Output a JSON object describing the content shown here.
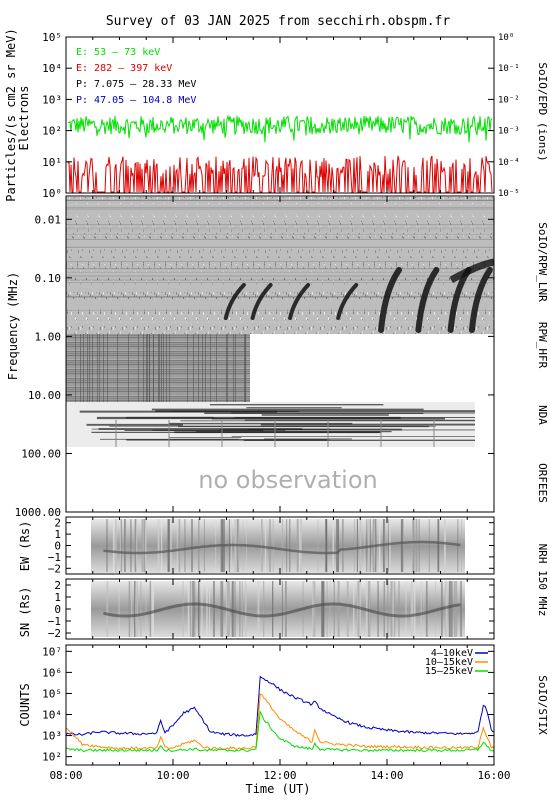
{
  "title": "Survey of 03 JAN 2025 from secchirh.obspm.fr",
  "x_axis": {
    "label": "Time (UT)",
    "ticks": [
      "08:00",
      "10:00",
      "12:00",
      "14:00",
      "16:00"
    ],
    "range_hours": [
      8,
      16
    ]
  },
  "colors": {
    "green": "#00e000",
    "red": "#e00000",
    "black": "#000000",
    "blue": "#0000c0",
    "orange": "#ff8c00"
  },
  "chart_data": [
    {
      "type": "line",
      "panel": "SoIO/EPD",
      "ylabel": "Particles/(s cm2 sr MeV)",
      "ylabel2": "Electrons",
      "right_label": "SoIO/EPD (ions)",
      "y_scale": "log",
      "ylim": [
        1,
        100000
      ],
      "left_ticks": [
        "10⁰",
        "10¹",
        "10²",
        "10³",
        "10⁴",
        "10⁵"
      ],
      "right_ticks": [
        "10⁻⁵",
        "10⁻⁴",
        "10⁻³",
        "10⁻²",
        "10⁻¹",
        "10⁰"
      ],
      "series": [
        {
          "name": "E: 53 – 73 keV",
          "typical_value": 150,
          "color": "#00e000"
        },
        {
          "name": "E: 282 – 397 keV",
          "typical_value": 5,
          "color": "#e00000"
        },
        {
          "name": "P: 7.075 – 28.33 MeV",
          "color": "#000000"
        },
        {
          "name": "P: 47.05 – 104.8 MeV",
          "color": "#0000c0"
        }
      ]
    },
    {
      "type": "heatmap",
      "panel": "Radio spectrogram",
      "ylabel": "Frequency (MHz)",
      "y_scale": "log",
      "y_ticks": [
        "0.01",
        "0.10",
        "1.00",
        "10.00",
        "100.00",
        "1000.00"
      ],
      "ylim": [
        0.004,
        1000
      ],
      "right_labels": [
        "SoIO/RPW_LNR",
        "RPW_HFR",
        "NDA",
        "ORFEES"
      ],
      "annotation": "no observation",
      "bursts_hours": [
        11.1,
        11.6,
        12.3,
        13.2,
        14.0,
        14.7,
        15.3,
        15.7
      ],
      "lnr_range_hours": [
        8.0,
        16.0
      ],
      "hfr_range_hours": [
        8.0,
        11.3
      ],
      "nda_range_hours": [
        8.0,
        15.6
      ]
    },
    {
      "type": "heatmap",
      "panel": "NRH 150 MHz EW",
      "ylabel": "EW (Rs)",
      "y_ticks": [
        "2",
        "1",
        "0",
        "−1",
        "−2"
      ],
      "ylim": [
        -2.5,
        2.5
      ],
      "coverage_hours": [
        8.7,
        15.4
      ]
    },
    {
      "type": "heatmap",
      "panel": "NRH 150 MHz SN",
      "ylabel": "SN (Rs)",
      "right_label": "NRH 150 MHz",
      "y_ticks": [
        "2",
        "1",
        "0",
        "−1",
        "−2"
      ],
      "ylim": [
        -2.5,
        2.5
      ],
      "coverage_hours": [
        8.7,
        15.4
      ]
    },
    {
      "type": "line",
      "panel": "SoIO/STIX",
      "ylabel": "COUNTS",
      "right_label": "SoIO/STIX",
      "y_scale": "log",
      "ylim": [
        40,
        20000000
      ],
      "y_ticks": [
        "10²",
        "10³",
        "10⁴",
        "10⁵",
        "10⁶",
        "10⁷"
      ],
      "x_hours": [
        8.0,
        8.3,
        8.6,
        9.0,
        9.4,
        9.7,
        9.77,
        9.85,
        10.0,
        10.2,
        10.4,
        10.55,
        10.7,
        10.9,
        11.1,
        11.4,
        11.55,
        11.63,
        11.7,
        11.85,
        12.0,
        12.3,
        12.6,
        12.65,
        12.75,
        13.0,
        13.3,
        13.6,
        14.0,
        14.5,
        15.0,
        15.4,
        15.7,
        15.8,
        15.87,
        15.95,
        16.0
      ],
      "series": [
        {
          "name": "4–10keV",
          "color": "#0000c0",
          "values": [
            1200,
            1100,
            1500,
            1300,
            1200,
            1300,
            5000,
            1400,
            3000,
            12000,
            20000,
            6000,
            1500,
            1200,
            1100,
            1000,
            1200,
            600000,
            500000,
            300000,
            150000,
            60000,
            30000,
            40000,
            20000,
            8000,
            4000,
            2500,
            1800,
            1400,
            1300,
            1200,
            1400,
            30000,
            15000,
            2000,
            1500
          ]
        },
        {
          "name": "10–15keV",
          "color": "#ff8c00",
          "values": [
            2500,
            400,
            300,
            250,
            250,
            250,
            900,
            260,
            260,
            400,
            600,
            300,
            250,
            250,
            250,
            250,
            300,
            100000,
            60000,
            20000,
            6000,
            1500,
            500,
            2000,
            500,
            400,
            350,
            300,
            300,
            280,
            270,
            260,
            280,
            2500,
            800,
            280,
            260
          ]
        },
        {
          "name": "15–25keV",
          "color": "#00e000",
          "values": [
            230,
            200,
            200,
            200,
            200,
            200,
            350,
            200,
            200,
            210,
            230,
            200,
            200,
            200,
            200,
            200,
            220,
            12000,
            6000,
            2000,
            700,
            300,
            230,
            400,
            230,
            210,
            210,
            200,
            200,
            200,
            200,
            200,
            210,
            500,
            300,
            200,
            200
          ]
        }
      ]
    }
  ]
}
